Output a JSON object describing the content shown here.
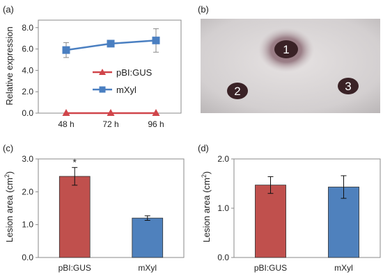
{
  "panels": {
    "a": "(a)",
    "b": "(b)",
    "c": "(c)",
    "d": "(d)"
  },
  "photo": {
    "labels": [
      "1",
      "2",
      "3"
    ]
  },
  "chart_data": [
    {
      "type": "line",
      "panel": "(a)",
      "ylabel": "Relative expression",
      "xlabel": "",
      "categories": [
        "48 h",
        "72 h",
        "96 h"
      ],
      "yticks": [
        "0.0",
        "2.0",
        "4.0",
        "6.0",
        "8.0"
      ],
      "ylim": [
        0,
        8.7
      ],
      "legend_position": "center-right",
      "series": [
        {
          "name": "pBI:GUS",
          "color": "#d0454a",
          "marker": "triangle",
          "values": [
            0.0,
            0.0,
            0.0
          ],
          "errors": [
            0,
            0,
            0
          ]
        },
        {
          "name": "mXyl",
          "color": "#4a7fc1",
          "marker": "square",
          "values": [
            5.9,
            6.5,
            6.8
          ],
          "errors": [
            0.7,
            0.3,
            1.1
          ]
        }
      ]
    },
    {
      "type": "bar",
      "panel": "(c)",
      "ylabel": "Lesion area (cm",
      "ylabel_sup": "2",
      "ylabel_close": ")",
      "categories": [
        "pBI:GUS",
        "mXyl"
      ],
      "values": [
        2.47,
        1.2
      ],
      "errors": [
        0.27,
        0.07
      ],
      "colors": [
        "#c0504d",
        "#4f81bd"
      ],
      "yticks": [
        "0.0",
        "1.0",
        "2.0",
        "3.0"
      ],
      "ylim": [
        0,
        3.0
      ],
      "annotation": "*"
    },
    {
      "type": "bar",
      "panel": "(d)",
      "ylabel": "Lesion area (cm",
      "ylabel_sup": "2",
      "ylabel_close": ")",
      "categories": [
        "pBI:GUS",
        "mXyl"
      ],
      "values": [
        1.47,
        1.43
      ],
      "errors": [
        0.17,
        0.23
      ],
      "colors": [
        "#c0504d",
        "#4f81bd"
      ],
      "yticks": [
        "0.0",
        "1.0",
        "2.0"
      ],
      "ylim": [
        0,
        2.0
      ]
    }
  ]
}
